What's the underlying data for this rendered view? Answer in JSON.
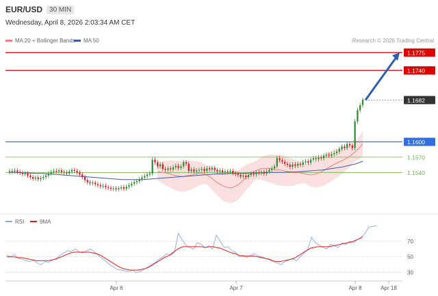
{
  "header": {
    "symbol": "EUR/USD",
    "timeframe": "30 MIN",
    "datetime": "Wednesday, April 8, 2026 2:03:34 AM CET"
  },
  "legend": [
    {
      "name": "MA 20 + Bollinger Bands",
      "color": "#f08080"
    },
    {
      "name": "MA 50",
      "color": "#3b5aa8"
    }
  ],
  "copyright": "Research © 2026 Trading Central",
  "colors": {
    "up": "#2e8b2e",
    "down": "#cc2222",
    "resistance": "#e00000",
    "pivot": "#2f6fe0",
    "support": "#6ab04c",
    "arrow": "#2f5fa8",
    "band": "#f7c6c6",
    "ma20": "#f08080",
    "ma50": "#3b5aa8",
    "rsi": "#8fa6e8",
    "rsi_ma": "#e21b1b"
  },
  "chart_data": [
    {
      "type": "candlestick",
      "title": "EUR/USD",
      "ylim": [
        1.146,
        1.1795
      ],
      "x_ticks": [
        "Apr 6",
        "Apr 7",
        "Apr 8",
        "Apr 18"
      ],
      "levels": [
        {
          "label": "1.1775",
          "value": 1.1775,
          "kind": "resistance"
        },
        {
          "label": "1.1740",
          "value": 1.174,
          "kind": "resistance"
        },
        {
          "label": "1.1682",
          "value": 1.1682,
          "kind": "last"
        },
        {
          "label": "1.1600",
          "value": 1.16,
          "kind": "pivot"
        },
        {
          "label": "1.1570",
          "value": 1.157,
          "kind": "support"
        },
        {
          "label": "1.1540",
          "value": 1.154,
          "kind": "support"
        }
      ],
      "forecast_arrow": {
        "from": 1.1682,
        "to": 1.1775
      },
      "close": [
        1.1543,
        1.1542,
        1.1544,
        1.1541,
        1.1539,
        1.1537,
        1.1538,
        1.1534,
        1.1531,
        1.1528,
        1.153,
        1.1527,
        1.1529,
        1.1531,
        1.1534,
        1.1538,
        1.1541,
        1.1543,
        1.1542,
        1.1544,
        1.1541,
        1.154,
        1.1538,
        1.1542,
        1.1545,
        1.1543,
        1.154,
        1.1536,
        1.1531,
        1.1525,
        1.1521,
        1.1519,
        1.152,
        1.1517,
        1.1515,
        1.1513,
        1.1514,
        1.1511,
        1.151,
        1.1508,
        1.1509,
        1.1507,
        1.1509,
        1.1511,
        1.1508,
        1.1512,
        1.1515,
        1.1518,
        1.1521,
        1.1523,
        1.1527,
        1.153,
        1.1533,
        1.1536,
        1.1538,
        1.1565,
        1.156,
        1.1552,
        1.1556,
        1.1547,
        1.1545,
        1.1548,
        1.1546,
        1.155,
        1.1553,
        1.1549,
        1.1552,
        1.156,
        1.1557,
        1.1543,
        1.1546,
        1.1542,
        1.1544,
        1.1545,
        1.1547,
        1.1543,
        1.1548,
        1.1546,
        1.1549,
        1.1545,
        1.1542,
        1.1544,
        1.154,
        1.1542,
        1.1541,
        1.1543,
        1.1539,
        1.1537,
        1.1535,
        1.1532,
        1.1534,
        1.1531,
        1.1535,
        1.1538,
        1.1536,
        1.154,
        1.1539,
        1.1541,
        1.1538,
        1.1542,
        1.1545,
        1.1548,
        1.1552,
        1.1568,
        1.1564,
        1.1561,
        1.1557,
        1.1555,
        1.1551,
        1.1556,
        1.1553,
        1.1557,
        1.1555,
        1.156,
        1.1562,
        1.1559,
        1.1565,
        1.1568,
        1.1566,
        1.157,
        1.1568,
        1.1573,
        1.1575,
        1.1573,
        1.1576,
        1.1578,
        1.1581,
        1.1586,
        1.1591,
        1.1588,
        1.1596,
        1.1593,
        1.1588,
        1.164,
        1.1662,
        1.1672,
        1.1682
      ],
      "ma20": [
        1.1542,
        1.1541,
        1.154,
        1.1539,
        1.1538,
        1.1537,
        1.1535,
        1.1534,
        1.1533,
        1.1532,
        1.1532,
        1.1533,
        1.1534,
        1.1535,
        1.1536,
        1.1537,
        1.1538,
        1.1538,
        1.1537,
        1.1535,
        1.1532,
        1.1528,
        1.1524,
        1.152,
        1.1517,
        1.1514,
        1.1512,
        1.1511,
        1.151,
        1.1511,
        1.1513,
        1.1516,
        1.152,
        1.1525,
        1.153,
        1.1534,
        1.1538,
        1.1541,
        1.1544,
        1.1546,
        1.1548,
        1.1548,
        1.1548,
        1.1548,
        1.1547,
        1.1546,
        1.1545,
        1.1545,
        1.1544,
        1.1543,
        1.1542,
        1.1541,
        1.154,
        1.154,
        1.154,
        1.1539,
        1.1538,
        1.1537,
        1.1536,
        1.1535,
        1.1536,
        1.1537,
        1.1539,
        1.1541,
        1.1544,
        1.1547,
        1.155,
        1.1553,
        1.1556,
        1.1558,
        1.1561,
        1.1563,
        1.1566,
        1.1569,
        1.1572,
        1.1576,
        1.158,
        1.1585,
        1.159,
        1.1597
      ],
      "ma50": [
        1.154,
        1.154,
        1.1539,
        1.1539,
        1.1538,
        1.1538,
        1.1537,
        1.1536,
        1.1535,
        1.1534,
        1.1533,
        1.1532,
        1.1531,
        1.153,
        1.1529,
        1.1528,
        1.1527,
        1.1526,
        1.1526,
        1.1526,
        1.1526,
        1.1527,
        1.1528,
        1.1529,
        1.153,
        1.1531,
        1.1532,
        1.1533,
        1.1534,
        1.1535,
        1.1536,
        1.1537,
        1.1537,
        1.1538,
        1.1538,
        1.1538,
        1.1539,
        1.1539,
        1.1539,
        1.154,
        1.154,
        1.154,
        1.1541,
        1.1541,
        1.1542,
        1.1543,
        1.1544,
        1.1545,
        1.1547,
        1.1549,
        1.1551,
        1.1554,
        1.1557,
        1.1562
      ]
    },
    {
      "type": "line",
      "title": "RSI",
      "series_names": [
        "RSI",
        "9MA"
      ],
      "ylim": [
        20,
        90
      ],
      "y_ticks": [
        30,
        50,
        70
      ],
      "rsi": [
        52,
        50,
        53,
        48,
        47,
        45,
        44,
        46,
        42,
        40,
        44,
        43,
        46,
        48,
        52,
        55,
        58,
        57,
        60,
        56,
        55,
        58,
        60,
        56,
        52,
        48,
        44,
        40,
        37,
        34,
        33,
        32,
        31,
        33,
        30,
        31,
        34,
        37,
        40,
        43,
        47,
        50,
        54,
        52,
        56,
        80,
        72,
        65,
        62,
        60,
        68,
        66,
        62,
        64,
        60,
        78,
        70,
        62,
        63,
        58,
        56,
        50,
        52,
        49,
        52,
        54,
        51,
        50,
        48,
        46,
        44,
        42,
        40,
        44,
        46,
        48,
        45,
        50,
        55,
        60,
        75,
        68,
        65,
        62,
        60,
        66,
        64,
        62,
        68,
        66,
        70,
        68,
        72,
        74,
        80,
        88,
        89,
        90
      ],
      "rsi_ma": [
        50,
        50,
        50,
        49,
        49,
        48,
        47,
        46,
        45,
        45,
        45,
        45,
        46,
        47,
        49,
        51,
        53,
        55,
        56,
        56,
        56,
        56,
        56,
        55,
        54,
        52,
        49,
        46,
        43,
        40,
        37,
        35,
        34,
        33,
        33,
        33,
        34,
        35,
        37,
        40,
        43,
        46,
        49,
        51,
        54,
        58,
        61,
        63,
        63,
        63,
        63,
        63,
        63,
        62,
        63,
        63,
        62,
        61,
        59,
        57,
        55,
        54,
        52,
        51,
        51,
        51,
        51,
        50,
        49,
        48,
        47,
        45,
        44,
        44,
        45,
        46,
        47,
        49,
        52,
        55,
        58,
        61,
        62,
        63,
        63,
        63,
        63,
        64,
        65,
        66,
        67,
        68,
        69,
        71,
        73,
        76
      ]
    }
  ]
}
